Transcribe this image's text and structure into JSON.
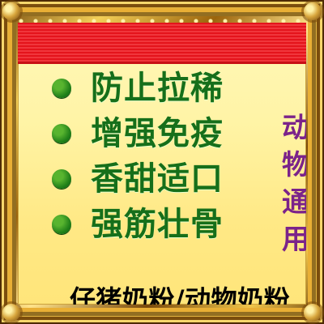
{
  "poster": {
    "benefits": [
      {
        "text": "防止拉稀"
      },
      {
        "text": "增强免疫"
      },
      {
        "text": "香甜适口"
      },
      {
        "text": "强筋壮骨"
      }
    ],
    "side_text": "动物通用",
    "product_title": "仔猪奶粉/动物奶粉"
  }
}
